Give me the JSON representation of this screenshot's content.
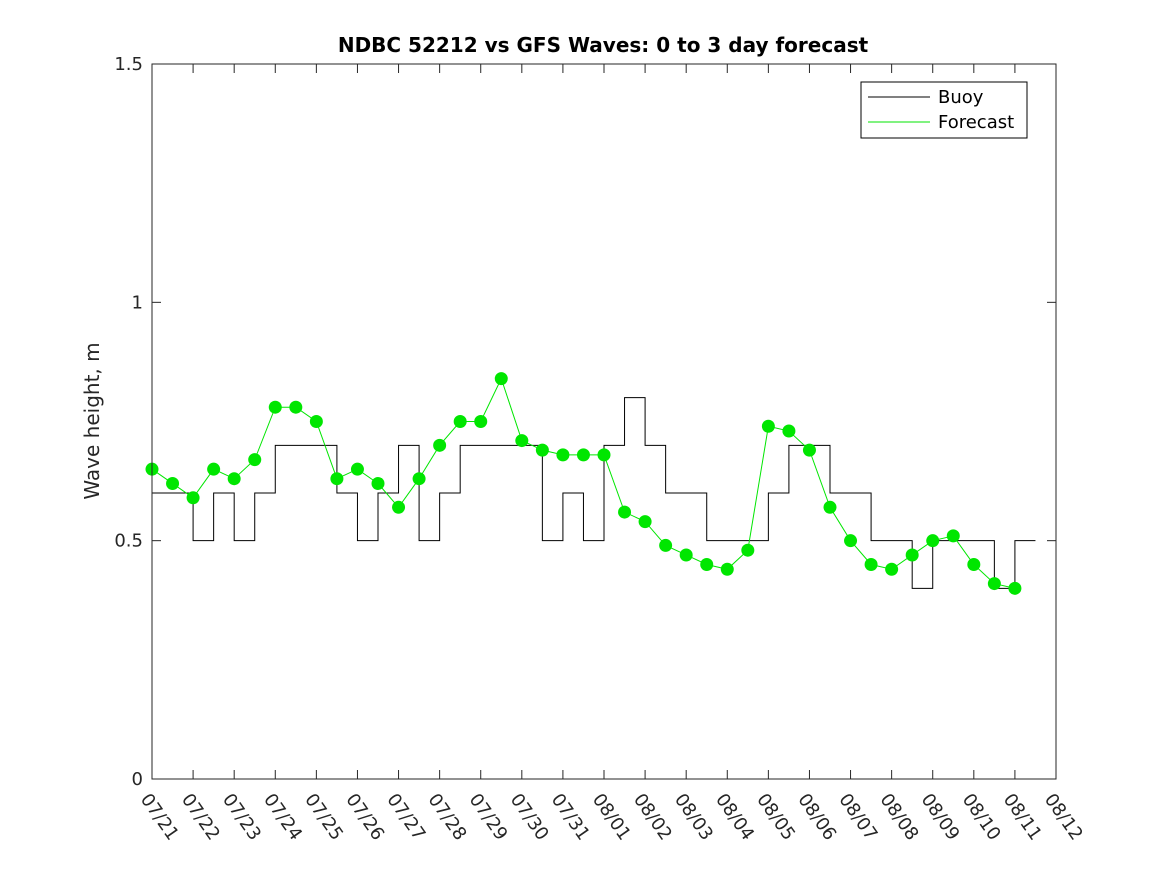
{
  "chart_data": {
    "type": "line",
    "title": "NDBC 52212 vs GFS Waves: 0 to 3 day forecast",
    "ylabel": "Wave height, m",
    "xlabel": "",
    "xlim": [
      0,
      22
    ],
    "ylim": [
      0,
      1.5
    ],
    "y_ticks": [
      0,
      0.5,
      1,
      1.5
    ],
    "y_tick_labels": [
      "0",
      "0.5",
      "1",
      "1.5"
    ],
    "x_tick_labels": [
      "07/21",
      "07/22",
      "07/23",
      "07/24",
      "07/25",
      "07/26",
      "07/27",
      "07/28",
      "07/29",
      "07/30",
      "07/31",
      "08/01",
      "08/02",
      "08/03",
      "08/04",
      "08/05",
      "08/06",
      "08/07",
      "08/08",
      "08/09",
      "08/10",
      "08/11",
      "08/12"
    ],
    "x_unit": "days since first tick (07/21)",
    "legend_position": "top-right",
    "legend": [
      {
        "label": "Buoy",
        "color": "#000000"
      },
      {
        "label": "Forecast",
        "color": "#00e600"
      }
    ],
    "colors": {
      "buoy": "#000000",
      "forecast": "#00e600",
      "markers": "#00e600"
    },
    "series": [
      {
        "name": "Buoy",
        "x": [
          0,
          0.5,
          1,
          1.5,
          2,
          2.5,
          3,
          3.5,
          4,
          4.5,
          5,
          5.5,
          6,
          6.5,
          7,
          7.5,
          8,
          8.5,
          9,
          9.5,
          10,
          10.5,
          11,
          11.5,
          12,
          12.5,
          13,
          13.5,
          14,
          14.5,
          15,
          15.5,
          16,
          16.5,
          17,
          17.5,
          18,
          18.5,
          19,
          19.5,
          20,
          20.5,
          21
        ],
        "y": [
          0.6,
          0.6,
          0.5,
          0.6,
          0.5,
          0.6,
          0.7,
          0.7,
          0.7,
          0.6,
          0.5,
          0.6,
          0.7,
          0.5,
          0.6,
          0.7,
          0.7,
          0.7,
          0.7,
          0.5,
          0.6,
          0.5,
          0.7,
          0.8,
          0.7,
          0.6,
          0.6,
          0.5,
          0.5,
          0.5,
          0.6,
          0.7,
          0.7,
          0.6,
          0.6,
          0.5,
          0.5,
          0.4,
          0.5,
          0.5,
          0.5,
          0.4,
          0.5
        ]
      },
      {
        "name": "Forecast",
        "x": [
          0,
          0.5,
          1,
          1.5,
          2,
          2.5,
          3,
          3.5,
          4,
          4.5,
          5,
          5.5,
          6,
          6.5,
          7,
          7.5,
          8,
          8.5,
          9,
          9.5,
          10,
          10.5,
          11,
          11.5,
          12,
          12.5,
          13,
          13.5,
          14,
          14.5,
          15,
          15.5,
          16,
          16.5,
          17,
          17.5,
          18,
          18.5,
          19,
          19.5,
          20,
          20.5,
          21
        ],
        "y": [
          0.65,
          0.62,
          0.59,
          0.65,
          0.63,
          0.67,
          0.78,
          0.78,
          0.75,
          0.63,
          0.65,
          0.62,
          0.57,
          0.63,
          0.7,
          0.75,
          0.75,
          0.84,
          0.71,
          0.69,
          0.68,
          0.68,
          0.68,
          0.56,
          0.54,
          0.49,
          0.47,
          0.45,
          0.44,
          0.48,
          0.74,
          0.73,
          0.69,
          0.57,
          0.5,
          0.45,
          0.44,
          0.47,
          0.5,
          0.51,
          0.45,
          0.41,
          0.4
        ]
      }
    ]
  }
}
